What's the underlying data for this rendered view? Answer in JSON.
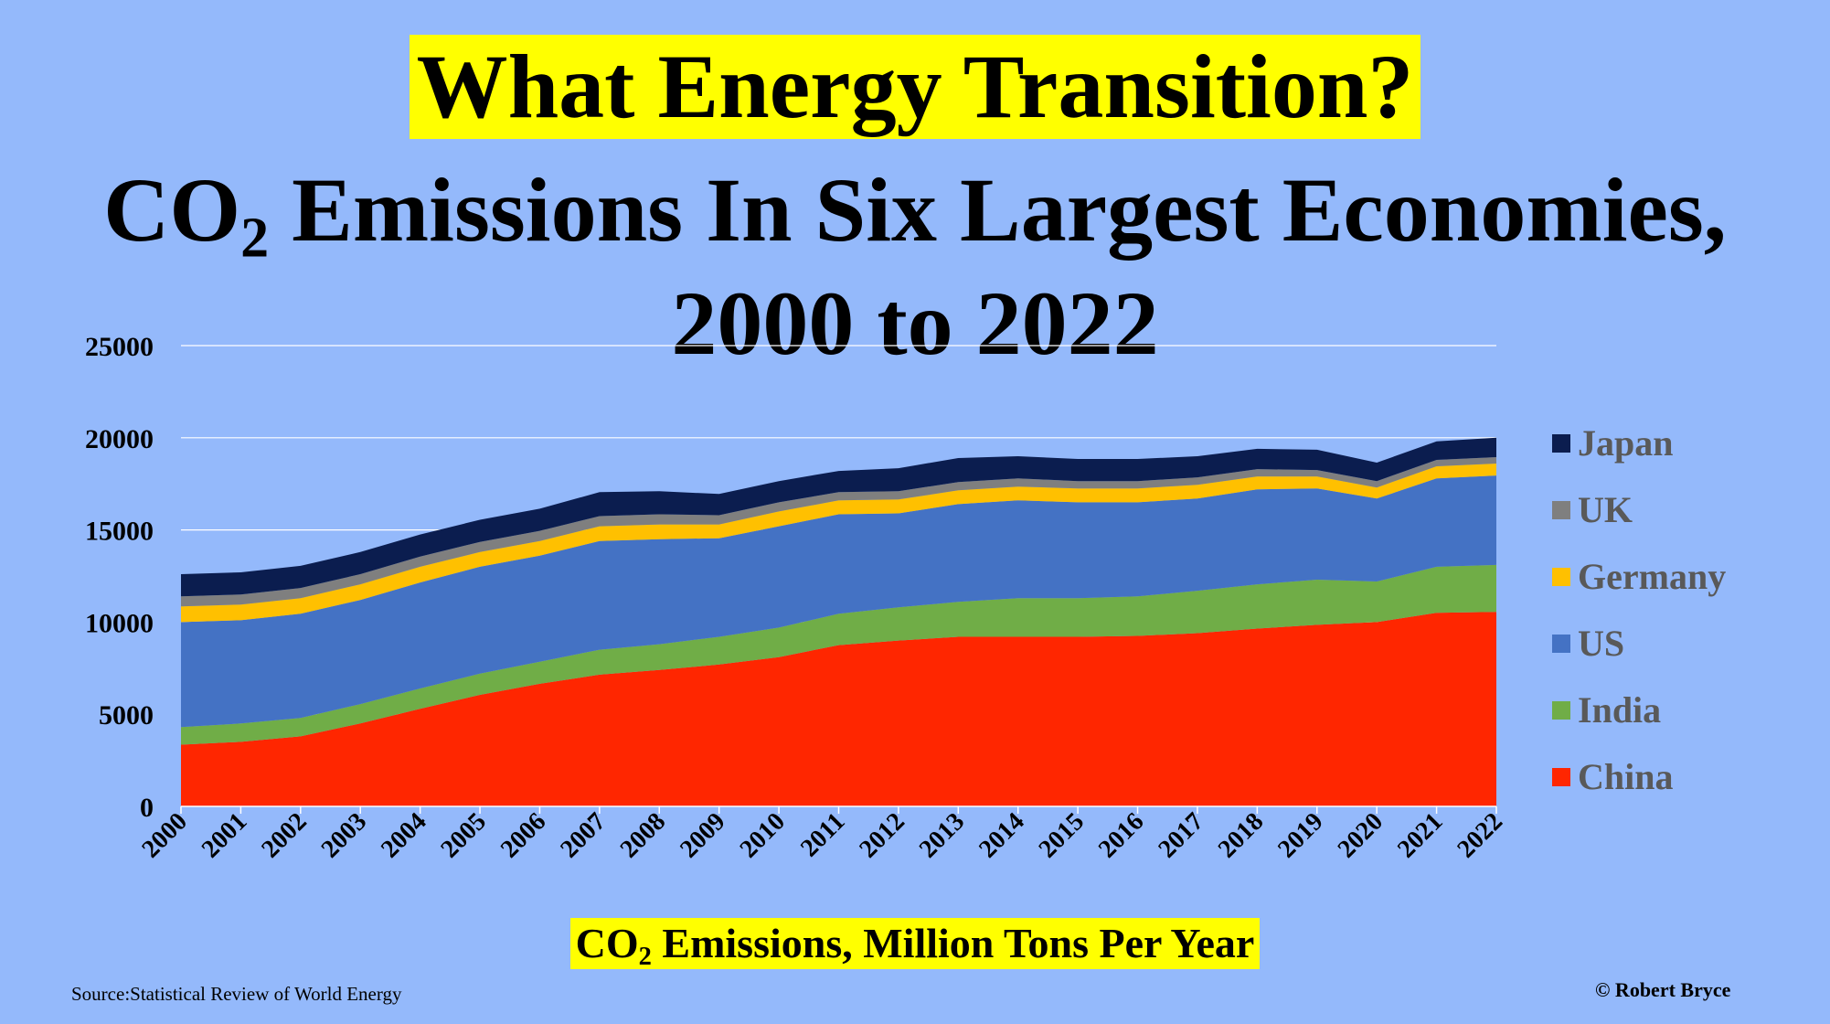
{
  "title": "What Energy Transition?",
  "subtitle": {
    "prefix": "CO",
    "sub": "2",
    "line1_rest": " Emissions In Six Largest Economies,",
    "line2": "2000 to 2022"
  },
  "x_caption": {
    "prefix": "CO",
    "sub": "2",
    "rest": " Emissions, Million Tons Per Year"
  },
  "source": "Source:Statistical Review of World Energy",
  "copyright": "© Robert Bryce",
  "chart_data": {
    "type": "area",
    "stacked": true,
    "x": [
      "2000",
      "2001",
      "2002",
      "2003",
      "2004",
      "2005",
      "2006",
      "2007",
      "2008",
      "2009",
      "2010",
      "2011",
      "2012",
      "2013",
      "2014",
      "2015",
      "2016",
      "2017",
      "2018",
      "2019",
      "2020",
      "2021",
      "2022"
    ],
    "ylim": [
      0,
      25000
    ],
    "yticks": [
      0,
      5000,
      10000,
      15000,
      20000,
      25000
    ],
    "grid": true,
    "legend_position": "right",
    "series": [
      {
        "name": "China",
        "color": "#ff2600",
        "values": [
          3350,
          3500,
          3800,
          4500,
          5300,
          6050,
          6650,
          7150,
          7400,
          7700,
          8100,
          8750,
          9000,
          9200,
          9200,
          9200,
          9250,
          9400,
          9650,
          9850,
          10000,
          10500,
          10550
        ]
      },
      {
        "name": "India",
        "color": "#70ad47",
        "values": [
          950,
          1000,
          1000,
          1050,
          1100,
          1150,
          1200,
          1350,
          1400,
          1500,
          1600,
          1700,
          1800,
          1900,
          2100,
          2100,
          2150,
          2300,
          2400,
          2450,
          2200,
          2500,
          2550
        ]
      },
      {
        "name": "US",
        "color": "#4472c4",
        "values": [
          5700,
          5600,
          5650,
          5650,
          5750,
          5800,
          5750,
          5900,
          5700,
          5350,
          5500,
          5400,
          5100,
          5300,
          5300,
          5200,
          5100,
          5000,
          5150,
          4950,
          4500,
          4800,
          4850
        ]
      },
      {
        "name": "Germany",
        "color": "#ffc000",
        "values": [
          850,
          850,
          850,
          850,
          850,
          800,
          800,
          800,
          800,
          750,
          800,
          750,
          750,
          750,
          750,
          750,
          750,
          750,
          700,
          650,
          600,
          650,
          650
        ]
      },
      {
        "name": "UK",
        "color": "#7f7f7f",
        "values": [
          550,
          550,
          550,
          550,
          550,
          550,
          550,
          550,
          550,
          500,
          500,
          450,
          450,
          450,
          450,
          400,
          400,
          400,
          400,
          350,
          350,
          350,
          350
        ]
      },
      {
        "name": "Japan",
        "color": "#0b1d4f",
        "values": [
          1200,
          1200,
          1200,
          1200,
          1200,
          1200,
          1200,
          1300,
          1250,
          1150,
          1150,
          1150,
          1250,
          1300,
          1200,
          1200,
          1200,
          1150,
          1100,
          1100,
          1000,
          1000,
          1050
        ]
      }
    ]
  }
}
